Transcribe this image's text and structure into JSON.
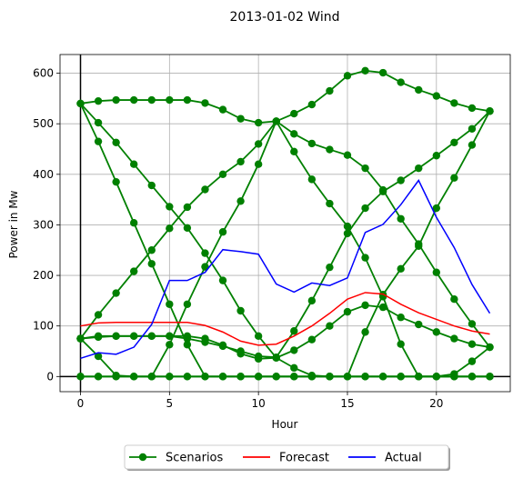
{
  "chart_data": {
    "type": "line",
    "title": "2013-01-02 Wind",
    "xlabel": "Hour",
    "ylabel": "Power in Mw",
    "xlim": [
      -1.15,
      24.15
    ],
    "ylim": [
      -30,
      637
    ],
    "xticks": [
      0,
      5,
      10,
      15,
      20
    ],
    "yticks": [
      0,
      100,
      200,
      300,
      400,
      500,
      600
    ],
    "grid": true,
    "legend_position": "bottom-center",
    "x": [
      0,
      1,
      2,
      3,
      4,
      5,
      6,
      7,
      8,
      9,
      10,
      11,
      12,
      13,
      14,
      15,
      16,
      17,
      18,
      19,
      20,
      21,
      22,
      23
    ],
    "series": [
      {
        "name": "Scenarios",
        "color": "#008000",
        "marker": "circle",
        "scenarios": [
          [
            540,
            545,
            547,
            547,
            547,
            547,
            547,
            541,
            528,
            510,
            502,
            505,
            520,
            538,
            565,
            595,
            605,
            601,
            582,
            567,
            555,
            541,
            531,
            525
          ],
          [
            540,
            502,
            463,
            420,
            378,
            336,
            294,
            244,
            190,
            130,
            80,
            37,
            17,
            2,
            0,
            0,
            0,
            0,
            0,
            0,
            0,
            5,
            30,
            58
          ],
          [
            540,
            465,
            385,
            304,
            223,
            143,
            63,
            0,
            0,
            0,
            0,
            0,
            0,
            0,
            0,
            0,
            0,
            0,
            0,
            0,
            0,
            0,
            0,
            0
          ],
          [
            75,
            122,
            165,
            208,
            250,
            293,
            335,
            370,
            400,
            425,
            460,
            505,
            445,
            390,
            342,
            297,
            235,
            158,
            64,
            0,
            0,
            0,
            0,
            0
          ],
          [
            75,
            40,
            2,
            0,
            0,
            63,
            143,
            217,
            286,
            347,
            420,
            505,
            480,
            461,
            449,
            438,
            412,
            369,
            312,
            262,
            206,
            153,
            104,
            58
          ],
          [
            0,
            0,
            0,
            0,
            0,
            0,
            0,
            0,
            0,
            0,
            0,
            0,
            0,
            0,
            0,
            0,
            88,
            162,
            213,
            258,
            333,
            393,
            458,
            525
          ],
          [
            75,
            80,
            80,
            80,
            80,
            80,
            80,
            75,
            62,
            45,
            35,
            37,
            52,
            73,
            100,
            128,
            141,
            137,
            117,
            103,
            88,
            75,
            64,
            58
          ],
          [
            75,
            78,
            80,
            80,
            80,
            80,
            75,
            68,
            60,
            50,
            40,
            38,
            90,
            150,
            216,
            283,
            333,
            366,
            388,
            412,
            437,
            463,
            490,
            525
          ],
          [
            0,
            0,
            0,
            0,
            0,
            0,
            0,
            0,
            0,
            0,
            0,
            0,
            0,
            0,
            0,
            0,
            0,
            0,
            0,
            0,
            0,
            0,
            0,
            0
          ]
        ]
      },
      {
        "name": "Forecast",
        "color": "#ff0000",
        "values": [
          100,
          106,
          107,
          107,
          107,
          107,
          107,
          101,
          88,
          70,
          62,
          64,
          80,
          100,
          125,
          153,
          166,
          163,
          143,
          126,
          113,
          100,
          90,
          84
        ]
      },
      {
        "name": "Actual",
        "color": "#0000ff",
        "values": [
          36,
          47,
          44,
          58,
          103,
          190,
          190,
          206,
          251,
          247,
          242,
          183,
          167,
          185,
          180,
          195,
          285,
          301,
          340,
          388,
          315,
          255,
          182,
          125
        ]
      }
    ]
  }
}
